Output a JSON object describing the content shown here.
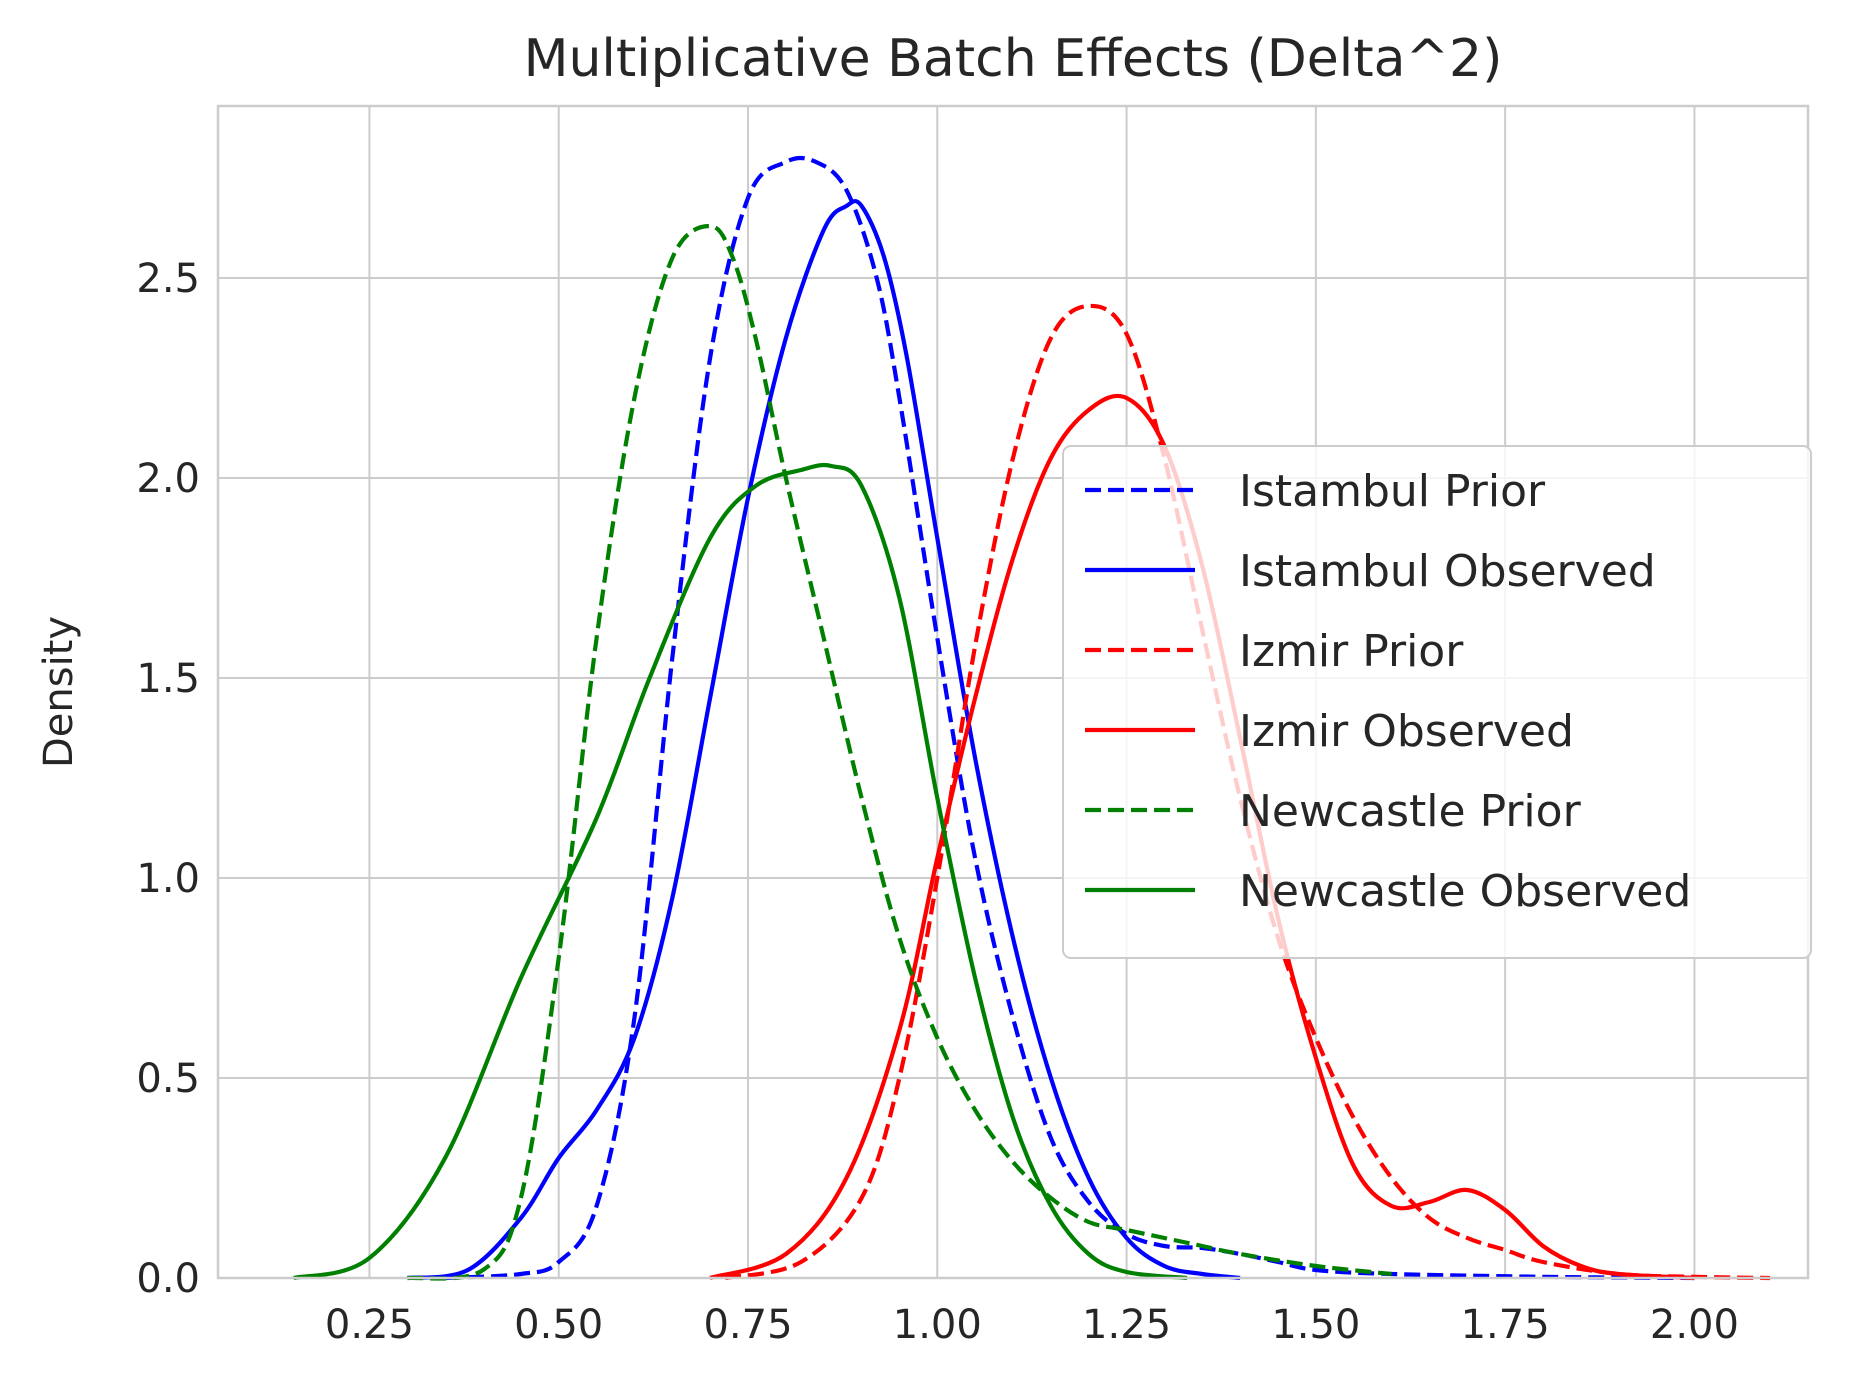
{
  "chart_data": {
    "type": "line",
    "title": "Multiplicative Batch Effects (Delta^2)",
    "xlabel": "",
    "ylabel": "Density",
    "xlim": [
      0.05,
      2.15
    ],
    "ylim": [
      0,
      2.93
    ],
    "xticks": [
      0.25,
      0.5,
      0.75,
      1.0,
      1.25,
      1.5,
      1.75,
      2.0
    ],
    "xtick_labels": [
      "0.25",
      "0.50",
      "0.75",
      "1.00",
      "1.25",
      "1.50",
      "1.75",
      "2.00"
    ],
    "yticks": [
      0.0,
      0.5,
      1.0,
      1.5,
      2.0,
      2.5
    ],
    "ytick_labels": [
      "0.0",
      "0.5",
      "1.0",
      "1.5",
      "2.0",
      "2.5"
    ],
    "grid": true,
    "legend_position": "center-right",
    "series": [
      {
        "name": "Istambul Prior",
        "color": "#0000ff",
        "style": "dashed",
        "x": [
          0.35,
          0.45,
          0.5,
          0.55,
          0.6,
          0.65,
          0.7,
          0.75,
          0.8,
          0.84,
          0.88,
          0.92,
          0.95,
          1.0,
          1.05,
          1.1,
          1.15,
          1.2,
          1.25,
          1.3,
          1.35,
          1.4,
          1.45,
          1.5,
          1.6,
          1.8,
          2.0
        ],
        "y": [
          0.0,
          0.01,
          0.04,
          0.18,
          0.65,
          1.55,
          2.3,
          2.7,
          2.79,
          2.79,
          2.72,
          2.5,
          2.2,
          1.6,
          1.05,
          0.65,
          0.35,
          0.19,
          0.11,
          0.08,
          0.075,
          0.06,
          0.04,
          0.02,
          0.01,
          0.003,
          0.0
        ]
      },
      {
        "name": "Istambul Observed",
        "color": "#0000ff",
        "style": "solid",
        "x": [
          0.3,
          0.38,
          0.45,
          0.5,
          0.55,
          0.6,
          0.65,
          0.7,
          0.75,
          0.8,
          0.85,
          0.88,
          0.9,
          0.93,
          0.96,
          1.0,
          1.05,
          1.1,
          1.15,
          1.2,
          1.25,
          1.3,
          1.35,
          1.4
        ],
        "y": [
          0.0,
          0.02,
          0.15,
          0.3,
          0.42,
          0.6,
          0.95,
          1.45,
          1.95,
          2.35,
          2.62,
          2.68,
          2.68,
          2.55,
          2.3,
          1.85,
          1.3,
          0.85,
          0.5,
          0.25,
          0.1,
          0.03,
          0.01,
          0.0
        ]
      },
      {
        "name": "Izmir Prior",
        "color": "#ff0000",
        "style": "dashed",
        "x": [
          0.72,
          0.82,
          0.9,
          0.95,
          1.0,
          1.05,
          1.1,
          1.15,
          1.2,
          1.25,
          1.3,
          1.35,
          1.4,
          1.45,
          1.5,
          1.55,
          1.6,
          1.65,
          1.7,
          1.75,
          1.8,
          1.9,
          2.0,
          2.1
        ],
        "y": [
          0.0,
          0.04,
          0.2,
          0.5,
          1.0,
          1.58,
          2.05,
          2.35,
          2.43,
          2.36,
          2.05,
          1.62,
          1.2,
          0.85,
          0.6,
          0.4,
          0.25,
          0.15,
          0.1,
          0.07,
          0.04,
          0.01,
          0.003,
          0.0
        ]
      },
      {
        "name": "Izmir Observed",
        "color": "#ff0000",
        "style": "solid",
        "x": [
          0.7,
          0.8,
          0.88,
          0.95,
          1.0,
          1.05,
          1.1,
          1.15,
          1.2,
          1.25,
          1.3,
          1.35,
          1.4,
          1.45,
          1.5,
          1.55,
          1.6,
          1.65,
          1.7,
          1.75,
          1.8,
          1.85,
          1.9,
          2.0
        ],
        "y": [
          0.0,
          0.06,
          0.25,
          0.62,
          1.05,
          1.45,
          1.8,
          2.05,
          2.17,
          2.2,
          2.08,
          1.78,
          1.35,
          0.9,
          0.55,
          0.28,
          0.18,
          0.19,
          0.22,
          0.17,
          0.08,
          0.03,
          0.01,
          0.0
        ]
      },
      {
        "name": "Newcastle Prior",
        "color": "#008000",
        "style": "dashed",
        "x": [
          0.3,
          0.4,
          0.45,
          0.5,
          0.55,
          0.6,
          0.65,
          0.7,
          0.73,
          0.76,
          0.8,
          0.85,
          0.9,
          0.95,
          1.0,
          1.05,
          1.1,
          1.15,
          1.2,
          1.25,
          1.3,
          1.35,
          1.4,
          1.5,
          1.6
        ],
        "y": [
          0.0,
          0.02,
          0.2,
          0.8,
          1.6,
          2.2,
          2.55,
          2.63,
          2.55,
          2.35,
          2.0,
          1.6,
          1.2,
          0.85,
          0.6,
          0.42,
          0.29,
          0.2,
          0.14,
          0.12,
          0.1,
          0.08,
          0.06,
          0.03,
          0.01
        ]
      },
      {
        "name": "Newcastle Observed",
        "color": "#008000",
        "style": "solid",
        "x": [
          0.15,
          0.25,
          0.35,
          0.45,
          0.55,
          0.62,
          0.7,
          0.76,
          0.82,
          0.86,
          0.9,
          0.95,
          1.0,
          1.05,
          1.1,
          1.15,
          1.2,
          1.25,
          1.33
        ],
        "y": [
          0.0,
          0.05,
          0.3,
          0.75,
          1.15,
          1.5,
          1.85,
          1.98,
          2.02,
          2.03,
          1.98,
          1.7,
          1.2,
          0.75,
          0.4,
          0.18,
          0.06,
          0.015,
          0.0
        ]
      }
    ]
  }
}
